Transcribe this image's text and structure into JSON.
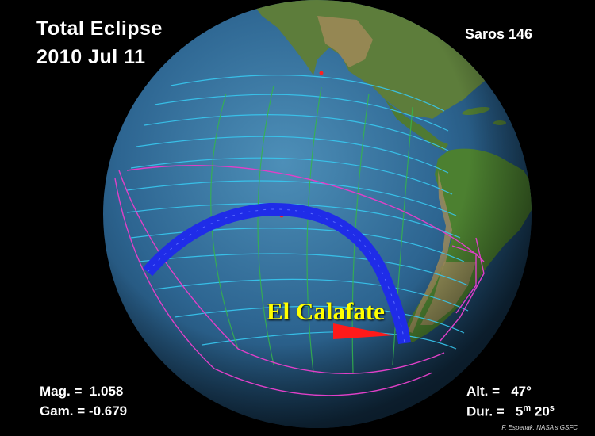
{
  "title_line1": "Total Eclipse",
  "title_line2": "2010 Jul 11",
  "saros": "Saros 146",
  "stats": {
    "mag_label": "Mag. =",
    "mag_value": "1.058",
    "gam_label": "Gam. =",
    "gam_value": "-0.679",
    "alt_label": "Alt. =",
    "alt_value": "47°",
    "dur_label": "Dur. =",
    "dur_min": "5",
    "dur_min_unit": "m",
    "dur_sec": "20",
    "dur_sec_unit": "s"
  },
  "city_label": "El Calafate",
  "credit": "F. Espenak, NASA's GSFC",
  "colors": {
    "ocean": "#2b5f86",
    "land": "#5b8a3c",
    "path": "#1f2ce8",
    "grid_cyan": "#38c8f0",
    "grid_green": "#35b54a",
    "limit_magenta": "#e040c8",
    "marker_red": "#ff1a1a",
    "city_yellow": "#ffff00"
  }
}
